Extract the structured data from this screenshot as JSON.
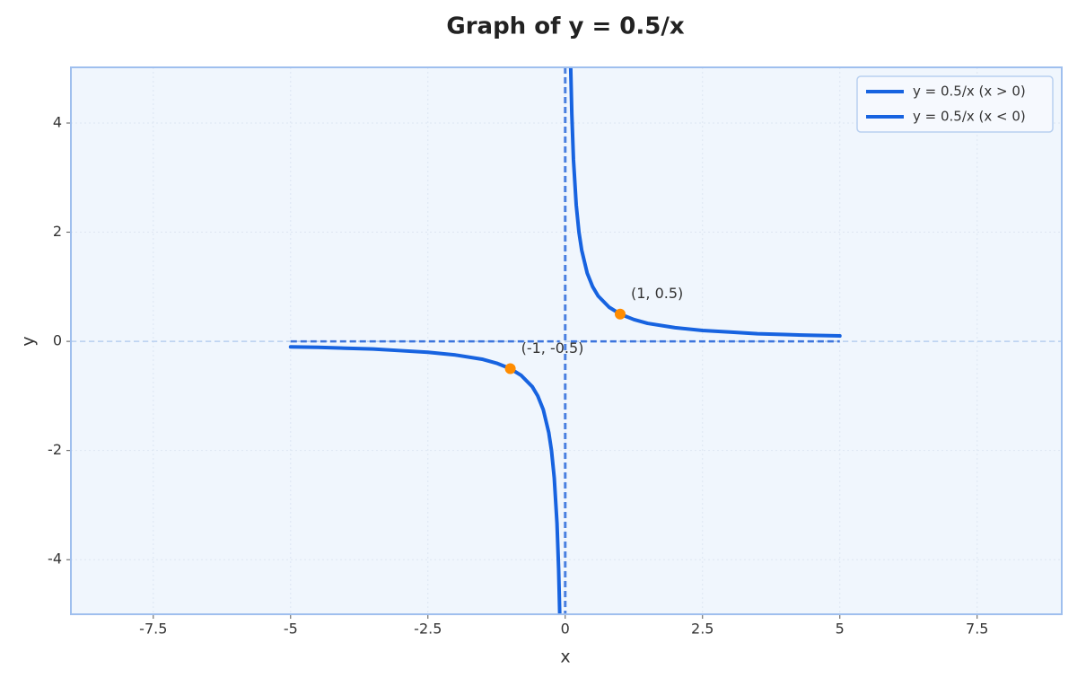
{
  "chart_data": {
    "type": "line",
    "title": "Graph of y = 0.5/x",
    "x_label": "x",
    "y_label": "y",
    "xlim": [
      -9,
      9.04
    ],
    "ylim": [
      -5,
      5.02
    ],
    "xticks": [
      -7.5,
      -5,
      -2.5,
      0,
      2.5,
      5,
      7.5
    ],
    "yticks": [
      -4,
      -2,
      0,
      2,
      4
    ],
    "grid": true,
    "legend": "upper right",
    "asymptotes": {
      "x": 0,
      "y": 0
    },
    "series": [
      {
        "name": "y = 0.5/x (x > 0)",
        "color": "#1763e0",
        "x": [
          0.1,
          0.12,
          0.15,
          0.2,
          0.25,
          0.3,
          0.4,
          0.5,
          0.6,
          0.8,
          1,
          1.25,
          1.5,
          2,
          2.5,
          3,
          3.5,
          4,
          4.5,
          5
        ],
        "values": [
          5,
          4.17,
          3.33,
          2.5,
          2,
          1.67,
          1.25,
          1,
          0.83,
          0.625,
          0.5,
          0.4,
          0.33,
          0.25,
          0.2,
          0.17,
          0.14,
          0.125,
          0.11,
          0.1
        ]
      },
      {
        "name": "y = 0.5/x (x < 0)",
        "color": "#1763e0",
        "x": [
          -5,
          -4.5,
          -4,
          -3.5,
          -3,
          -2.5,
          -2,
          -1.5,
          -1.25,
          -1,
          -0.8,
          -0.6,
          -0.5,
          -0.4,
          -0.3,
          -0.25,
          -0.2,
          -0.15,
          -0.12,
          -0.1
        ],
        "values": [
          -0.1,
          -0.11,
          -0.125,
          -0.14,
          -0.17,
          -0.2,
          -0.25,
          -0.33,
          -0.4,
          -0.5,
          -0.625,
          -0.83,
          -1,
          -1.25,
          -1.67,
          -2,
          -2.5,
          -3.33,
          -4.17,
          -5
        ]
      }
    ],
    "annotations": [
      {
        "x": 1,
        "y": 0.5,
        "label": "(1, 0.5)",
        "color": "#ff8c00"
      },
      {
        "x": -1,
        "y": -0.5,
        "label": "(-1, -0.5)",
        "color": "#ff8c00"
      }
    ]
  }
}
